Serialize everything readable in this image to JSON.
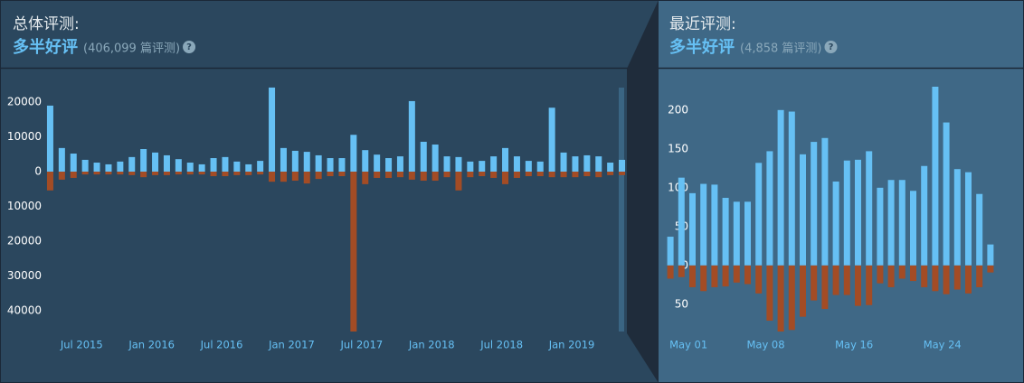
{
  "overall": {
    "heading": "总体评测:",
    "rating": "多半好评",
    "count": "(406,099 篇评测)",
    "help": "?"
  },
  "recent": {
    "heading": "最近评测:",
    "rating": "多半好评",
    "count": "(4,858 篇评测)",
    "help": "?"
  },
  "chart_data": [
    {
      "type": "bar",
      "categories": [
        null,
        null,
        "Jul 2015",
        null,
        null,
        null,
        null,
        null,
        "Jan 2016",
        null,
        null,
        null,
        null,
        null,
        "Jul 2016",
        null,
        null,
        null,
        null,
        null,
        "Jan 2017",
        null,
        null,
        null,
        null,
        null,
        "Jul 2017",
        null,
        null,
        null,
        null,
        null,
        "Jan 2018",
        null,
        null,
        null,
        null,
        null,
        "Jul 2018",
        null,
        null,
        null,
        null,
        null,
        "Jan 2019",
        null,
        null,
        null,
        null,
        null
      ],
      "series": [
        {
          "color": "#66c0f4",
          "values": [
            19000,
            6800,
            5200,
            3400,
            2600,
            2100,
            2900,
            4200,
            6500,
            5500,
            4700,
            3600,
            2600,
            2100,
            3900,
            4200,
            2900,
            2100,
            3100,
            24200,
            6800,
            6000,
            5700,
            4700,
            3900,
            3900,
            10600,
            6200,
            4900,
            3900,
            4400,
            20300,
            8600,
            7800,
            4400,
            4200,
            2900,
            3100,
            4400,
            6800,
            4400,
            3100,
            2900,
            18400,
            5500,
            4400,
            4700,
            4400,
            2600,
            3400
          ]
        },
        {
          "color": "#a34c25",
          "values": [
            -5400,
            -2300,
            -1800,
            -800,
            -800,
            -800,
            -800,
            -1000,
            -1600,
            -1000,
            -1000,
            -800,
            -800,
            -800,
            -1300,
            -1300,
            -1000,
            -1000,
            -800,
            -2900,
            -2900,
            -2600,
            -3400,
            -2100,
            -1300,
            -1300,
            -46000,
            -3600,
            -1800,
            -1800,
            -1600,
            -2300,
            -2600,
            -2600,
            -1600,
            -5400,
            -1600,
            -1300,
            -1800,
            -3600,
            -1800,
            -1300,
            -1300,
            -1600,
            -1600,
            -1600,
            -1300,
            -1600,
            -1000,
            -1000
          ]
        }
      ],
      "ylim": [
        -46000,
        24700
      ],
      "yticks": [
        20000,
        10000,
        0,
        {
          "value": -10000,
          "label": "10000"
        },
        {
          "value": -20000,
          "label": "20000"
        },
        {
          "value": -30000,
          "label": "30000"
        },
        {
          "value": -40000,
          "label": "40000"
        }
      ]
    },
    {
      "type": "bar",
      "categories": [
        "May 01",
        null,
        null,
        null,
        null,
        null,
        null,
        "May 08",
        null,
        null,
        null,
        null,
        null,
        null,
        null,
        "May 16",
        null,
        null,
        null,
        null,
        null,
        null,
        null,
        "May 24",
        null,
        null,
        null,
        null,
        null,
        null
      ],
      "series": [
        {
          "color": "#66c0f4",
          "values": [
            37,
            113,
            93,
            105,
            104,
            87,
            82,
            82,
            132,
            147,
            200,
            198,
            143,
            159,
            164,
            108,
            135,
            136,
            147,
            100,
            110,
            110,
            96,
            128,
            230,
            184,
            124,
            120,
            92,
            27
          ]
        },
        {
          "color": "#a34c25",
          "values": [
            -17,
            -15,
            -28,
            -33,
            -28,
            -27,
            -22,
            -24,
            -36,
            -71,
            -85,
            -83,
            -66,
            -45,
            -56,
            -38,
            -38,
            -52,
            -51,
            -23,
            -28,
            -17,
            -20,
            -28,
            -33,
            -37,
            -31,
            -36,
            -28,
            -9
          ]
        }
      ],
      "ylim": [
        -85,
        230
      ],
      "yticks": [
        200,
        150,
        100,
        50,
        0,
        {
          "value": -50,
          "label": "50"
        }
      ]
    }
  ]
}
